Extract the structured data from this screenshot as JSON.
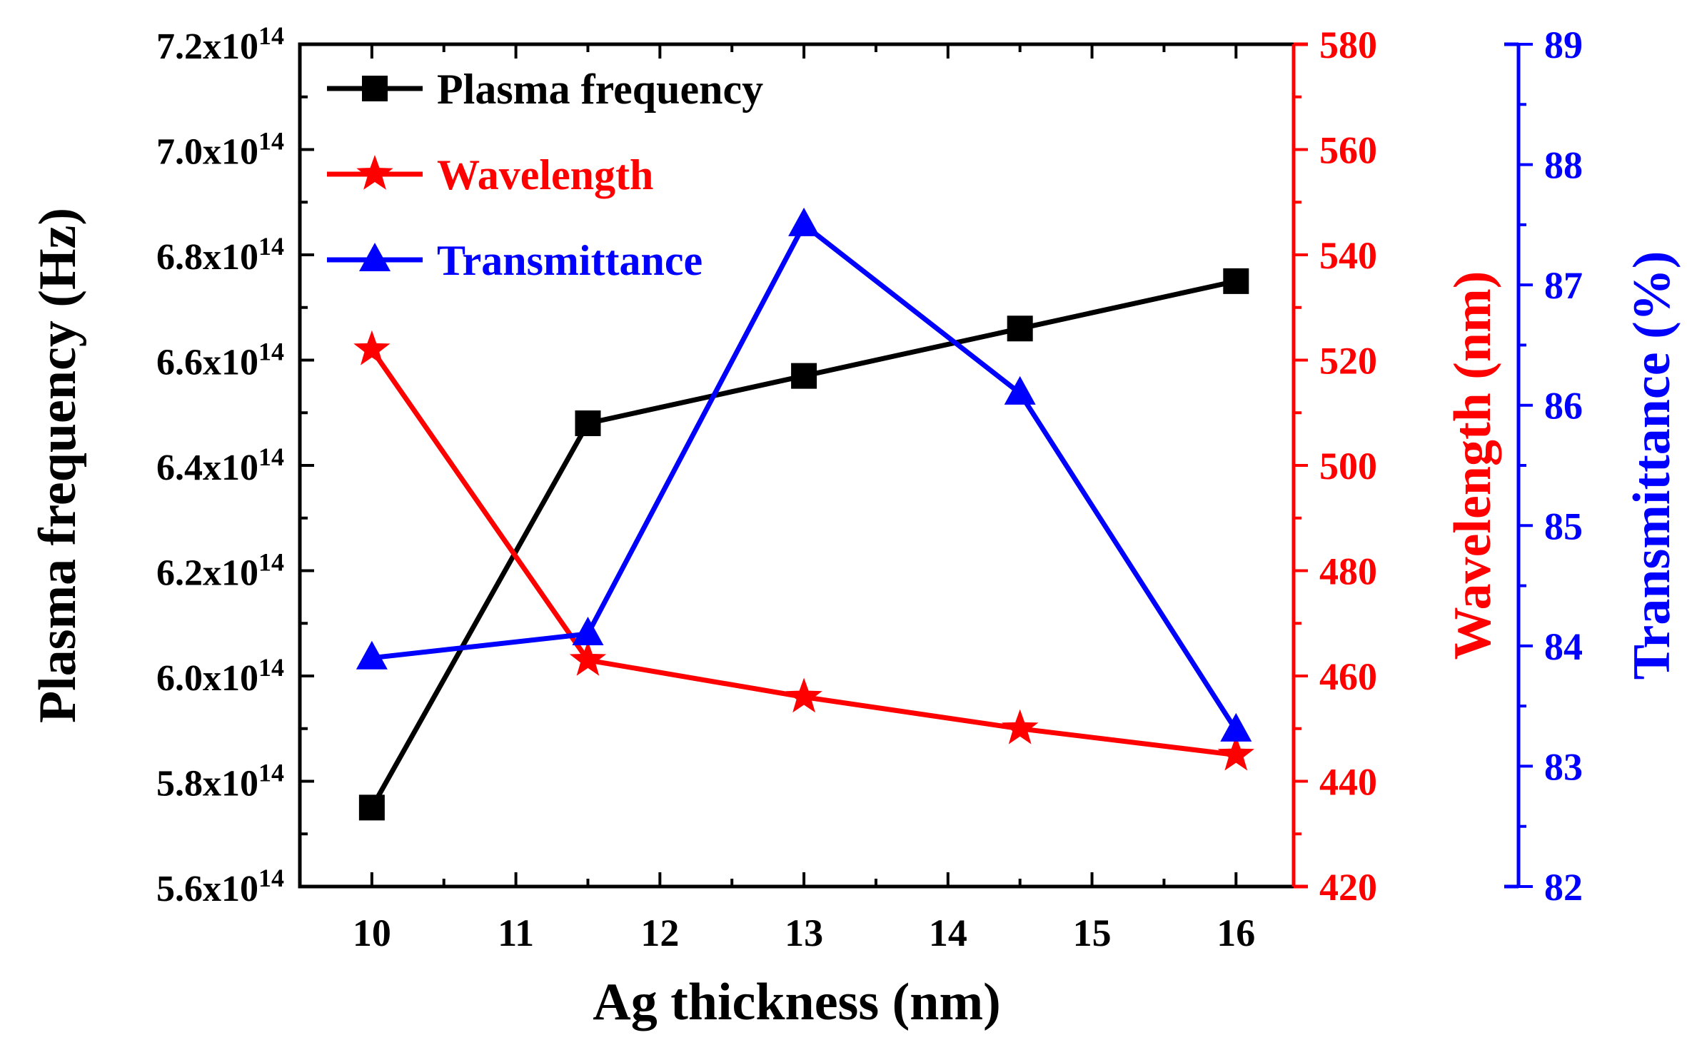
{
  "chart_data": {
    "type": "line",
    "xlabel": "Ag thickness (nm)",
    "x": [
      10,
      11.5,
      13,
      14.5,
      16
    ],
    "xlim": [
      9.5,
      16.4
    ],
    "xticks": [
      10,
      11,
      12,
      13,
      14,
      15,
      16
    ],
    "axes": {
      "left": {
        "label": "Plasma frequency (Hz)",
        "color": "#000000",
        "ylim": [
          560000000000000.0,
          720000000000000.0
        ],
        "ticks": [
          {
            "value": 560000000000000.0,
            "mantissa": "5.6x10",
            "exp": "14"
          },
          {
            "value": 580000000000000.0,
            "mantissa": "5.8x10",
            "exp": "14"
          },
          {
            "value": 600000000000000.0,
            "mantissa": "6.0x10",
            "exp": "14"
          },
          {
            "value": 620000000000000.0,
            "mantissa": "6.2x10",
            "exp": "14"
          },
          {
            "value": 640000000000000.0,
            "mantissa": "6.4x10",
            "exp": "14"
          },
          {
            "value": 660000000000000.0,
            "mantissa": "6.6x10",
            "exp": "14"
          },
          {
            "value": 680000000000000.0,
            "mantissa": "6.8x10",
            "exp": "14"
          },
          {
            "value": 700000000000000.0,
            "mantissa": "7.0x10",
            "exp": "14"
          },
          {
            "value": 720000000000000.0,
            "mantissa": "7.2x10",
            "exp": "14"
          }
        ]
      },
      "right1": {
        "label": "Wavelength (nm)",
        "color": "#ff0000",
        "ylim": [
          420,
          580
        ],
        "ticks": [
          420,
          440,
          460,
          480,
          500,
          520,
          540,
          560,
          580
        ]
      },
      "right2": {
        "label": "Transmittance (%)",
        "color": "#0000ff",
        "ylim": [
          82,
          89
        ],
        "ticks": [
          82,
          83,
          84,
          85,
          86,
          87,
          88,
          89
        ]
      }
    },
    "series": [
      {
        "name": "Plasma frequency",
        "axis": "left",
        "color": "#000000",
        "marker": "square",
        "values": [
          575000000000000.0,
          648000000000000.0,
          657000000000000.0,
          666000000000000.0,
          675000000000000.0
        ]
      },
      {
        "name": "Wavelength",
        "axis": "right1",
        "color": "#ff0000",
        "marker": "star",
        "values": [
          522,
          463,
          456,
          450,
          445
        ]
      },
      {
        "name": "Transmittance",
        "axis": "right2",
        "color": "#0000ff",
        "marker": "triangle",
        "values": [
          83.9,
          84.1,
          87.5,
          86.1,
          83.3
        ]
      }
    ],
    "legend": "top-left"
  }
}
